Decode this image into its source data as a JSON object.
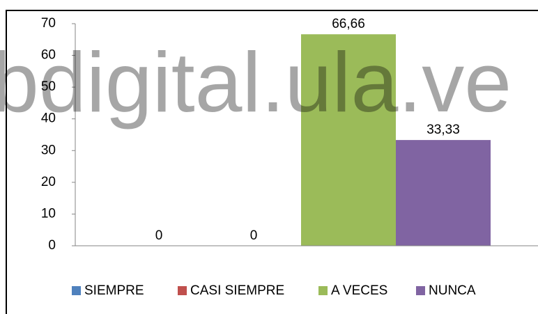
{
  "chart_data": {
    "type": "bar",
    "watermark": "bdigital.ula.ve",
    "categories": [
      null
    ],
    "series": [
      {
        "name": "SIEMPRE",
        "color": "#4f81bd",
        "values": [
          0
        ]
      },
      {
        "name": "CASI SIEMPRE",
        "color": "#c0504d",
        "values": [
          0
        ]
      },
      {
        "name": "A VECES",
        "color": "#9bbb59",
        "values": [
          66.66
        ],
        "value_labels": [
          "66,66"
        ]
      },
      {
        "name": "NUNCA",
        "color": "#8064a2",
        "values": [
          33.33
        ],
        "value_labels": [
          "33,33"
        ]
      }
    ],
    "ylim": [
      0,
      70
    ],
    "yticks": [
      0,
      10,
      20,
      30,
      40,
      50,
      60,
      70
    ],
    "grid": false,
    "legend": "bottom"
  }
}
